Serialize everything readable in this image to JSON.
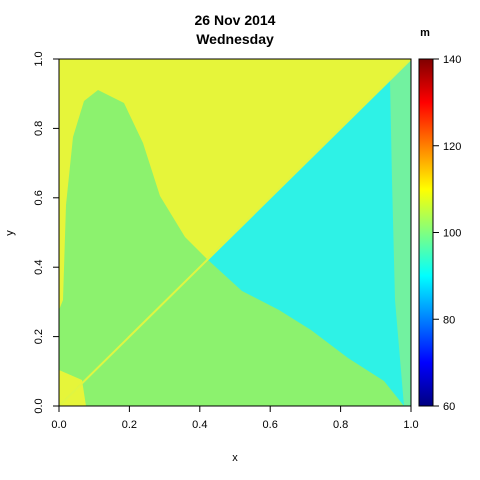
{
  "chart_data": {
    "type": "heatmap",
    "title": "26 Nov 2014",
    "subtitle": "Wednesday",
    "xlabel": "x",
    "ylabel": "y",
    "xlim": [
      0,
      1
    ],
    "ylim": [
      0,
      1
    ],
    "x_ticks": [
      "0.0",
      "0.2",
      "0.4",
      "0.6",
      "0.8",
      "1.0"
    ],
    "y_ticks": [
      "0.0",
      "0.2",
      "0.4",
      "0.6",
      "0.8",
      "1.0"
    ],
    "colorbar": {
      "unit_label": "m",
      "range": [
        60,
        140
      ],
      "ticks": [
        "60",
        "80",
        "100",
        "120",
        "140"
      ],
      "colors": [
        "#000080",
        "#0000ff",
        "#0080ff",
        "#00ffff",
        "#80ff80",
        "#ffff00",
        "#ff8000",
        "#ff0000",
        "#800000"
      ]
    },
    "regions": [
      {
        "name": "main-lobe",
        "value": 101,
        "color": "#8cf26e"
      },
      {
        "name": "upper-left-triangle",
        "value": 106,
        "color": "#e6f53a"
      },
      {
        "name": "lower-right-triangle",
        "value": 94,
        "color": "#2ef2e6"
      },
      {
        "name": "right-edge-band",
        "value": 99,
        "color": "#72f2a0"
      },
      {
        "name": "diagonal-line",
        "value": 107,
        "color": "#dff542"
      }
    ],
    "grid": false
  }
}
